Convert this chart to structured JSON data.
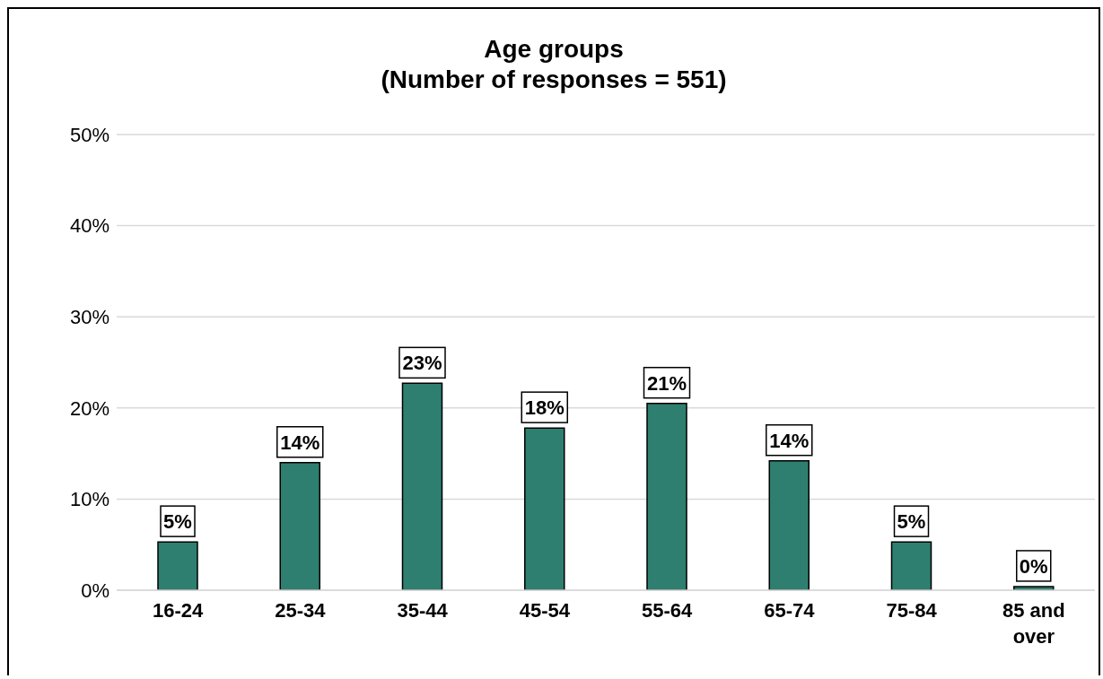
{
  "chart_data": {
    "type": "bar",
    "title": "Age groups",
    "subtitle": "(Number of responses = 551)",
    "categories": [
      "16-24",
      "25-34",
      "35-44",
      "45-54",
      "55-64",
      "65-74",
      "75-84",
      "85 and over"
    ],
    "values": [
      5.3,
      14,
      22.7,
      17.8,
      20.5,
      14.2,
      5.3,
      0.4
    ],
    "value_labels": [
      "5%",
      "14%",
      "23%",
      "18%",
      "21%",
      "14%",
      "5%",
      "0%"
    ],
    "color": "#2e7f70",
    "ylim": [
      0,
      50
    ],
    "yticks": [
      {
        "value": 0,
        "label": "0%"
      },
      {
        "value": 10,
        "label": "10%"
      },
      {
        "value": 20,
        "label": "20%"
      },
      {
        "value": 30,
        "label": "30%"
      },
      {
        "value": 40,
        "label": "40%"
      },
      {
        "value": 50,
        "label": "50%"
      }
    ],
    "grid": "y"
  }
}
